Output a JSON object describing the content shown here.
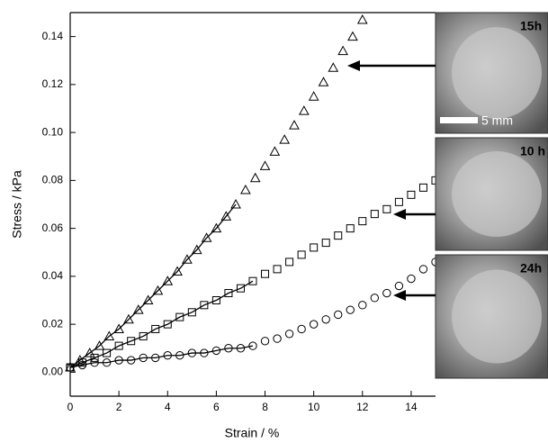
{
  "chart_data": {
    "type": "scatter",
    "x_label": "Strain / %",
    "y_label": "Stress / kPa",
    "xlim": [
      0,
      15
    ],
    "ylim": [
      -0.01,
      0.15
    ],
    "xticks": [
      0,
      2,
      4,
      6,
      8,
      10,
      12,
      14
    ],
    "yticks": [
      {
        "value": 0,
        "label": "0.00"
      },
      {
        "value": 0.02,
        "label": "0.02"
      },
      {
        "value": 0.04,
        "label": "0.04"
      },
      {
        "value": 0.06,
        "label": "0.06"
      },
      {
        "value": 0.08,
        "label": "0.08"
      },
      {
        "value": 0.1,
        "label": "0.10"
      },
      {
        "value": 0.12,
        "label": "0.12"
      },
      {
        "value": 0.14,
        "label": "0.14"
      }
    ],
    "series": [
      {
        "name": "15h",
        "marker": "triangle",
        "color": "#000000",
        "fit_x": [
          0,
          6.8
        ],
        "x": [
          0,
          0.4,
          0.8,
          1.2,
          1.6,
          2.0,
          2.4,
          2.8,
          3.2,
          3.6,
          4.0,
          4.4,
          4.8,
          5.2,
          5.6,
          6.0,
          6.4,
          6.8,
          7.2,
          7.6,
          8.0,
          8.4,
          8.8,
          9.2,
          9.6,
          10.0,
          10.4,
          10.8,
          11.2,
          11.6,
          12.0
        ],
        "values": [
          0.002,
          0.005,
          0.008,
          0.011,
          0.015,
          0.018,
          0.022,
          0.026,
          0.03,
          0.034,
          0.038,
          0.042,
          0.047,
          0.051,
          0.056,
          0.06,
          0.065,
          0.07,
          0.076,
          0.081,
          0.086,
          0.092,
          0.097,
          0.103,
          0.109,
          0.115,
          0.121,
          0.127,
          0.134,
          0.14,
          0.147
        ]
      },
      {
        "name": "10 h",
        "marker": "square",
        "color": "#000000",
        "fit_x": [
          0,
          7.5
        ],
        "x": [
          0,
          0.5,
          1,
          1.5,
          2,
          2.5,
          3,
          3.5,
          4,
          4.5,
          5,
          5.5,
          6,
          6.5,
          7,
          7.5,
          8,
          8.5,
          9,
          9.5,
          10,
          10.5,
          11,
          11.5,
          12,
          12.5,
          13,
          13.5,
          14,
          14.5,
          15
        ],
        "values": [
          0.002,
          0.004,
          0.006,
          0.008,
          0.011,
          0.013,
          0.015,
          0.018,
          0.02,
          0.023,
          0.025,
          0.028,
          0.03,
          0.033,
          0.035,
          0.038,
          0.041,
          0.043,
          0.046,
          0.049,
          0.052,
          0.054,
          0.057,
          0.06,
          0.063,
          0.066,
          0.068,
          0.071,
          0.074,
          0.077,
          0.08
        ]
      },
      {
        "name": "24h",
        "marker": "circle",
        "color": "#000000",
        "fit_x": [
          0,
          7.5
        ],
        "x": [
          0,
          0.5,
          1,
          1.5,
          2,
          2.5,
          3,
          3.5,
          4,
          4.5,
          5,
          5.5,
          6,
          6.5,
          7,
          7.5,
          8,
          8.5,
          9,
          9.5,
          10,
          10.5,
          11,
          11.5,
          12,
          12.5,
          13,
          13.5,
          14,
          14.5,
          15
        ],
        "values": [
          0.002,
          0.003,
          0.004,
          0.004,
          0.005,
          0.005,
          0.006,
          0.006,
          0.007,
          0.007,
          0.008,
          0.008,
          0.009,
          0.01,
          0.01,
          0.011,
          0.013,
          0.014,
          0.016,
          0.018,
          0.02,
          0.022,
          0.024,
          0.026,
          0.028,
          0.031,
          0.033,
          0.036,
          0.039,
          0.043,
          0.046
        ]
      }
    ],
    "scale_bar": "5 mm"
  }
}
